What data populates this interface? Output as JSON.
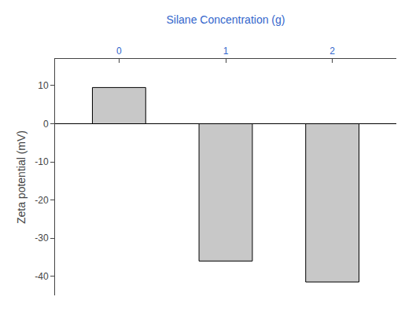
{
  "chart_data": {
    "type": "bar",
    "x": [
      0,
      1,
      2
    ],
    "values": [
      9.5,
      -36.0,
      -41.5
    ],
    "color": "#c8c8c8",
    "xlabel": "Silane Concentration (g)",
    "ylabel": "Zeta potential (mV)",
    "xlim": [
      -0.6,
      2.6
    ],
    "xticks": [
      0,
      1,
      2
    ],
    "ylim": [
      -45,
      17
    ],
    "yticks": [
      -40,
      -30,
      -20,
      -10,
      0,
      10
    ],
    "grid": false
  }
}
